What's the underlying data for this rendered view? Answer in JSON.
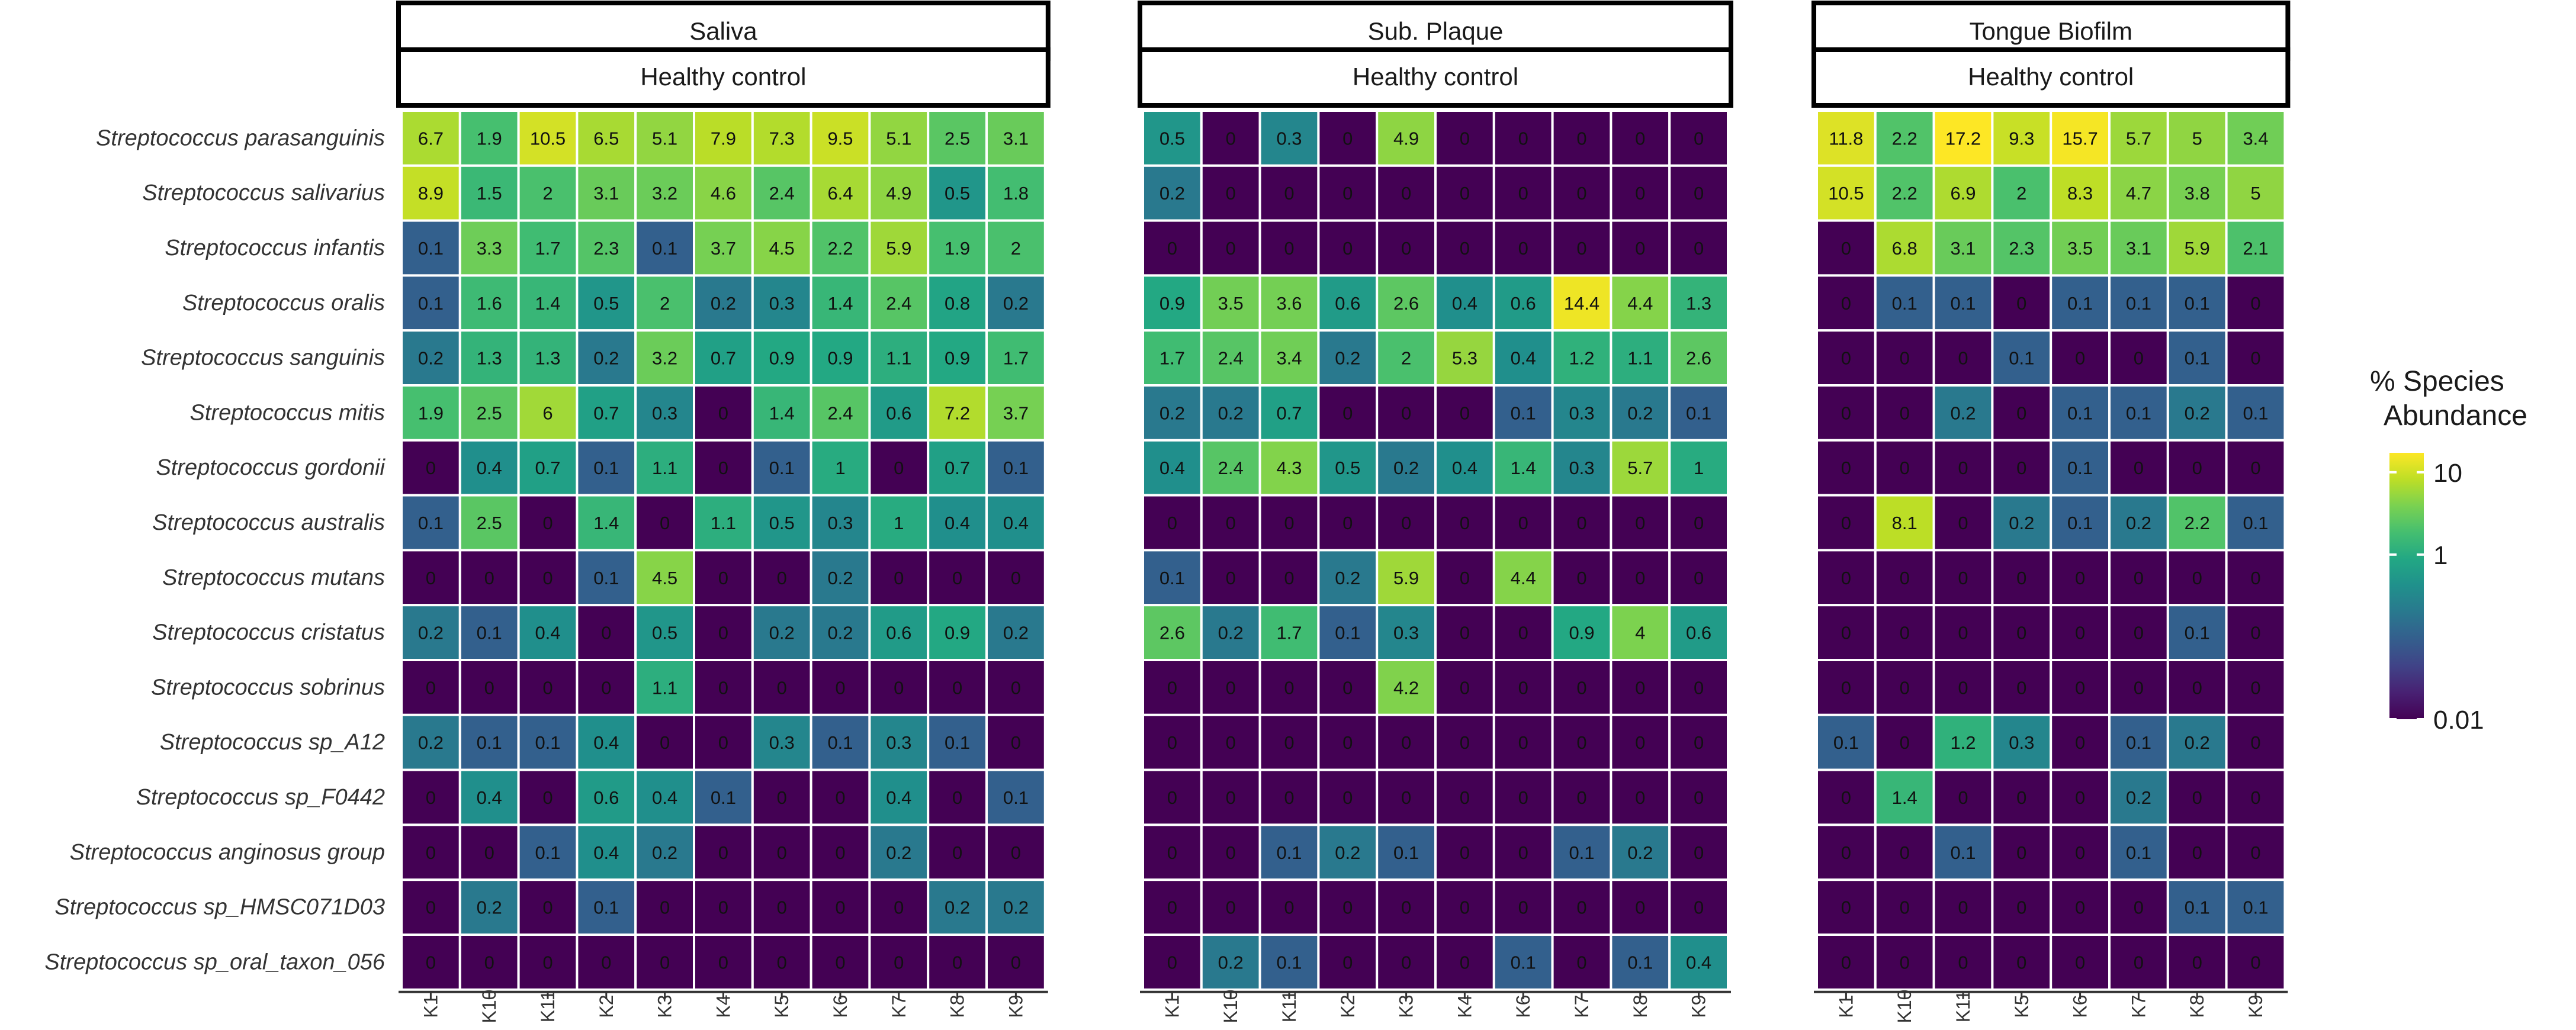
{
  "chart_data": {
    "type": "heatmap",
    "scale": "log10",
    "color_map": "viridis",
    "species": [
      "Streptococcus parasanguinis",
      "Streptococcus salivarius",
      "Streptococcus infantis",
      "Streptococcus oralis",
      "Streptococcus sanguinis",
      "Streptococcus mitis",
      "Streptococcus gordonii",
      "Streptococcus australis",
      "Streptococcus mutans",
      "Streptococcus cristatus",
      "Streptococcus sobrinus",
      "Streptococcus sp_A12",
      "Streptococcus sp_F0442",
      "Streptococcus anginosus group",
      "Streptococcus sp_HMSC071D03",
      "Streptococcus sp_oral_taxon_056"
    ],
    "legend": {
      "title_line1": "% Species",
      "title_line2": "Abundance",
      "breaks": [
        10,
        1,
        0.01
      ],
      "break_labels": [
        "10",
        "1",
        "0.01"
      ],
      "range": [
        0.01,
        17.2
      ]
    },
    "facets": [
      {
        "name": "Saliva",
        "group": "Healthy control",
        "samples": [
          "K1",
          "K10",
          "K11",
          "K2",
          "K3",
          "K4",
          "K5",
          "K6",
          "K7",
          "K8",
          "K9"
        ],
        "values": [
          [
            "6.7",
            "1.9",
            "10.5",
            "6.5",
            "5.1",
            "7.9",
            "7.3",
            "9.5",
            "5.1",
            "2.5",
            "3.1"
          ],
          [
            "8.9",
            "1.5",
            "2",
            "3.1",
            "3.2",
            "4.6",
            "2.4",
            "6.4",
            "4.9",
            "0.5",
            "1.8"
          ],
          [
            "0.1",
            "3.3",
            "1.7",
            "2.3",
            "0.1",
            "3.7",
            "4.5",
            "2.2",
            "5.9",
            "1.9",
            "2"
          ],
          [
            "0.1",
            "1.6",
            "1.4",
            "0.5",
            "2",
            "0.2",
            "0.3",
            "1.4",
            "2.4",
            "0.8",
            "0.2"
          ],
          [
            "0.2",
            "1.3",
            "1.3",
            "0.2",
            "3.2",
            "0.7",
            "0.9",
            "0.9",
            "1.1",
            "0.9",
            "1.7"
          ],
          [
            "1.9",
            "2.5",
            "6",
            "0.7",
            "0.3",
            "0",
            "1.4",
            "2.4",
            "0.6",
            "7.2",
            "3.7"
          ],
          [
            "0",
            "0.4",
            "0.7",
            "0.1",
            "1.1",
            "0",
            "0.1",
            "1",
            "0",
            "0.7",
            "0.1"
          ],
          [
            "0.1",
            "2.5",
            "0",
            "1.4",
            "0",
            "1.1",
            "0.5",
            "0.3",
            "1",
            "0.4",
            "0.4"
          ],
          [
            "0",
            "0",
            "0",
            "0.1",
            "4.5",
            "0",
            "0",
            "0.2",
            "0",
            "0",
            "0"
          ],
          [
            "0.2",
            "0.1",
            "0.4",
            "0",
            "0.5",
            "0",
            "0.2",
            "0.2",
            "0.6",
            "0.9",
            "0.2"
          ],
          [
            "0",
            "0",
            "0",
            "0",
            "1.1",
            "0",
            "0",
            "0",
            "0",
            "0",
            "0"
          ],
          [
            "0.2",
            "0.1",
            "0.1",
            "0.4",
            "0",
            "0",
            "0.3",
            "0.1",
            "0.3",
            "0.1",
            "0"
          ],
          [
            "0",
            "0.4",
            "0",
            "0.6",
            "0.4",
            "0.1",
            "0",
            "0",
            "0.4",
            "0",
            "0.1"
          ],
          [
            "0",
            "0",
            "0.1",
            "0.4",
            "0.2",
            "0",
            "0",
            "0",
            "0.2",
            "0",
            "0"
          ],
          [
            "0",
            "0.2",
            "0",
            "0.1",
            "0",
            "0",
            "0",
            "0",
            "0",
            "0.2",
            "0.2"
          ],
          [
            "0",
            "0",
            "0",
            "0",
            "0",
            "0",
            "0",
            "0",
            "0",
            "0",
            "0"
          ]
        ]
      },
      {
        "name": "Sub. Plaque",
        "group": "Healthy control",
        "samples": [
          "K1",
          "K10",
          "K11",
          "K2",
          "K3",
          "K4",
          "K6",
          "K7",
          "K8",
          "K9"
        ],
        "values": [
          [
            "0.5",
            "0",
            "0.3",
            "0",
            "4.9",
            "0",
            "0",
            "0",
            "0",
            "0"
          ],
          [
            "0.2",
            "0",
            "0",
            "0",
            "0",
            "0",
            "0",
            "0",
            "0",
            "0"
          ],
          [
            "0",
            "0",
            "0",
            "0",
            "0",
            "0",
            "0",
            "0",
            "0",
            "0"
          ],
          [
            "0.9",
            "3.5",
            "3.6",
            "0.6",
            "2.6",
            "0.4",
            "0.6",
            "14.4",
            "4.4",
            "1.3"
          ],
          [
            "1.7",
            "2.4",
            "3.4",
            "0.2",
            "2",
            "5.3",
            "0.4",
            "1.2",
            "1.1",
            "2.6"
          ],
          [
            "0.2",
            "0.2",
            "0.7",
            "0",
            "0",
            "0",
            "0.1",
            "0.3",
            "0.2",
            "0.1"
          ],
          [
            "0.4",
            "2.4",
            "4.3",
            "0.5",
            "0.2",
            "0.4",
            "1.4",
            "0.3",
            "5.7",
            "1"
          ],
          [
            "0",
            "0",
            "0",
            "0",
            "0",
            "0",
            "0",
            "0",
            "0",
            "0"
          ],
          [
            "0.1",
            "0",
            "0",
            "0.2",
            "5.9",
            "0",
            "4.4",
            "0",
            "0",
            "0"
          ],
          [
            "2.6",
            "0.2",
            "1.7",
            "0.1",
            "0.3",
            "0",
            "0",
            "0.9",
            "4",
            "0.6"
          ],
          [
            "0",
            "0",
            "0",
            "0",
            "4.2",
            "0",
            "0",
            "0",
            "0",
            "0"
          ],
          [
            "0",
            "0",
            "0",
            "0",
            "0",
            "0",
            "0",
            "0",
            "0",
            "0"
          ],
          [
            "0",
            "0",
            "0",
            "0",
            "0",
            "0",
            "0",
            "0",
            "0",
            "0"
          ],
          [
            "0",
            "0",
            "0.1",
            "0.2",
            "0.1",
            "0",
            "0",
            "0.1",
            "0.2",
            "0"
          ],
          [
            "0",
            "0",
            "0",
            "0",
            "0",
            "0",
            "0",
            "0",
            "0",
            "0"
          ],
          [
            "0",
            "0.2",
            "0.1",
            "0",
            "0",
            "0",
            "0.1",
            "0",
            "0.1",
            "0.4"
          ]
        ]
      },
      {
        "name": "Tongue Biofilm",
        "group": "Healthy control",
        "samples": [
          "K1",
          "K10",
          "K11",
          "K5",
          "K6",
          "K7",
          "K8",
          "K9"
        ],
        "values": [
          [
            "11.8",
            "2.2",
            "17.2",
            "9.3",
            "15.7",
            "5.7",
            "5",
            "3.4"
          ],
          [
            "10.5",
            "2.2",
            "6.9",
            "2",
            "8.3",
            "4.7",
            "3.8",
            "5"
          ],
          [
            "0",
            "6.8",
            "3.1",
            "2.3",
            "3.5",
            "3.1",
            "5.9",
            "2.1"
          ],
          [
            "0",
            "0.1",
            "0.1",
            "0",
            "0.1",
            "0.1",
            "0.1",
            "0"
          ],
          [
            "0",
            "0",
            "0",
            "0.1",
            "0",
            "0",
            "0.1",
            "0"
          ],
          [
            "0",
            "0",
            "0.2",
            "0",
            "0.1",
            "0.1",
            "0.2",
            "0.1"
          ],
          [
            "0",
            "0",
            "0",
            "0",
            "0.1",
            "0",
            "0",
            "0"
          ],
          [
            "0",
            "8.1",
            "0",
            "0.2",
            "0.1",
            "0.2",
            "2.2",
            "0.1"
          ],
          [
            "0",
            "0",
            "0",
            "0",
            "0",
            "0",
            "0",
            "0"
          ],
          [
            "0",
            "0",
            "0",
            "0",
            "0",
            "0",
            "0.1",
            "0"
          ],
          [
            "0",
            "0",
            "0",
            "0",
            "0",
            "0",
            "0",
            "0"
          ],
          [
            "0.1",
            "0",
            "1.2",
            "0.3",
            "0",
            "0.1",
            "0.2",
            "0"
          ],
          [
            "0",
            "1.4",
            "0",
            "0",
            "0",
            "0.2",
            "0",
            "0"
          ],
          [
            "0",
            "0",
            "0.1",
            "0",
            "0",
            "0.1",
            "0",
            "0"
          ],
          [
            "0",
            "0",
            "0",
            "0",
            "0",
            "0",
            "0.1",
            "0.1"
          ],
          [
            "0",
            "0",
            "0",
            "0",
            "0",
            "0",
            "0",
            "0"
          ]
        ]
      }
    ]
  }
}
